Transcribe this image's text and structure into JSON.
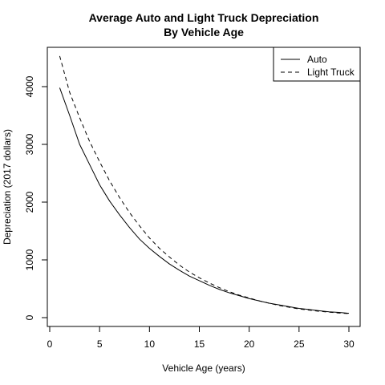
{
  "chart_data": {
    "type": "line",
    "title": "Average Auto and Light Truck Depreciation",
    "subtitle": "By Vehicle Age",
    "xlabel": "Vehicle Age (years)",
    "ylabel": "Depreciation (2017 dollars)",
    "xlim": [
      0,
      30
    ],
    "ylim": [
      0,
      4500
    ],
    "xticks": [
      0,
      5,
      10,
      15,
      20,
      25,
      30
    ],
    "yticks": [
      0,
      1000,
      2000,
      3000,
      4000
    ],
    "grid": false,
    "legend_position": "top-right",
    "x": [
      1,
      2,
      3,
      4,
      5,
      6,
      7,
      8,
      9,
      10,
      11,
      12,
      13,
      14,
      15,
      16,
      17,
      18,
      19,
      20,
      21,
      22,
      23,
      24,
      25,
      26,
      27,
      28,
      29,
      30
    ],
    "series": [
      {
        "name": "Auto",
        "line_style": "solid",
        "values": [
          3980,
          3500,
          3000,
          2650,
          2300,
          2020,
          1780,
          1560,
          1360,
          1200,
          1060,
          930,
          820,
          720,
          640,
          560,
          490,
          430,
          380,
          330,
          290,
          250,
          220,
          190,
          160,
          140,
          120,
          100,
          90,
          75
        ]
      },
      {
        "name": "Light Truck",
        "line_style": "dashed",
        "values": [
          4530,
          3900,
          3460,
          3050,
          2700,
          2370,
          2080,
          1820,
          1590,
          1380,
          1200,
          1050,
          910,
          790,
          690,
          600,
          520,
          450,
          390,
          340,
          290,
          250,
          210,
          180,
          150,
          130,
          110,
          95,
          80,
          70
        ]
      }
    ]
  }
}
